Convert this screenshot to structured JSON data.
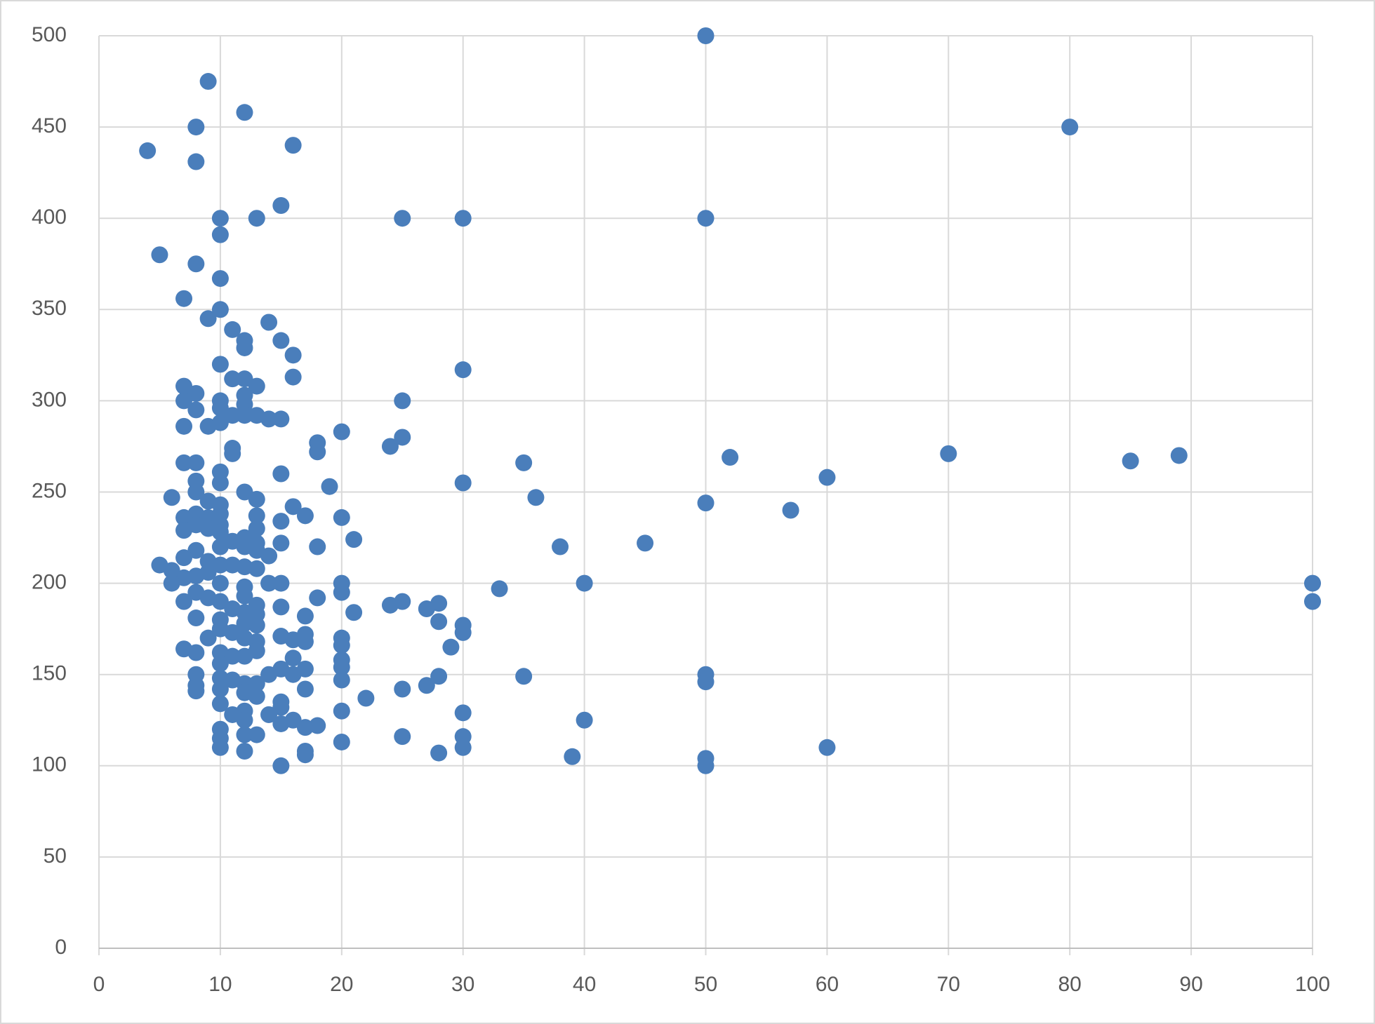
{
  "chart_data": {
    "type": "scatter",
    "color": "#4a7ebb",
    "grid": true,
    "xlim": [
      0,
      100
    ],
    "xticks": [
      0,
      10,
      20,
      30,
      40,
      50,
      60,
      70,
      80,
      90,
      100
    ],
    "ylim": [
      0,
      500
    ],
    "yticks": [
      0,
      50,
      100,
      150,
      200,
      250,
      300,
      350,
      400,
      450,
      500
    ],
    "x": [
      50,
      9,
      12,
      8,
      80,
      4,
      16,
      8,
      15,
      10,
      13,
      25,
      30,
      50,
      10,
      5,
      8,
      10,
      7,
      10,
      9,
      14,
      11,
      12,
      15,
      12,
      16,
      10,
      30,
      16,
      11,
      12,
      13,
      7,
      8,
      12,
      7,
      10,
      25,
      10,
      8,
      12,
      11,
      12,
      13,
      14,
      15,
      7,
      9,
      10,
      20,
      25,
      18,
      24,
      11,
      18,
      11,
      35,
      52,
      70,
      85,
      89,
      7,
      8,
      10,
      15,
      60,
      8,
      10,
      30,
      19,
      6,
      12,
      8,
      36,
      13,
      50,
      9,
      10,
      16,
      57,
      10,
      17,
      20,
      7,
      13,
      8,
      9,
      15,
      8,
      10,
      9,
      13,
      7,
      10,
      12,
      21,
      11,
      13,
      15,
      45,
      10,
      38,
      18,
      8,
      12,
      13,
      14,
      7,
      9,
      10,
      5,
      6,
      12,
      13,
      11,
      9,
      8,
      7,
      6,
      10,
      14,
      15,
      20,
      40,
      100,
      12,
      33,
      20,
      8,
      12,
      10,
      7,
      9,
      18,
      25,
      28,
      100,
      13,
      24,
      27,
      15,
      11,
      12,
      21,
      13,
      17,
      8,
      10,
      12,
      28,
      13,
      30,
      10,
      11,
      30,
      15,
      20,
      16,
      17,
      9,
      12,
      13,
      17,
      20,
      29,
      7,
      13,
      10,
      11,
      16,
      20,
      8,
      12,
      10,
      20,
      17,
      15,
      14,
      8,
      35,
      28,
      50,
      16,
      12,
      11,
      10,
      20,
      50,
      8,
      27,
      13,
      25,
      10,
      17,
      8,
      12,
      13,
      22,
      10,
      15,
      15,
      12,
      14,
      30,
      20,
      11,
      16,
      12,
      15,
      17,
      18,
      40,
      10,
      13,
      12,
      25,
      30,
      10,
      20,
      10,
      12,
      30,
      60,
      28,
      17,
      17,
      39,
      50,
      15,
      50
    ],
    "y": [
      500,
      475,
      458,
      450,
      450,
      437,
      440,
      431,
      407,
      400,
      400,
      400,
      400,
      400,
      391,
      380,
      375,
      367,
      356,
      350,
      345,
      343,
      339,
      333,
      333,
      329,
      325,
      320,
      317,
      313,
      312,
      312,
      308,
      308,
      304,
      303,
      300,
      300,
      300,
      296,
      295,
      298,
      292,
      292,
      292,
      290,
      290,
      286,
      286,
      288,
      283,
      280,
      277,
      275,
      274,
      272,
      271,
      266,
      269,
      271,
      267,
      270,
      266,
      266,
      261,
      260,
      258,
      256,
      255,
      255,
      253,
      247,
      250,
      250,
      247,
      246,
      244,
      245,
      243,
      242,
      240,
      238,
      237,
      236,
      236,
      237,
      238,
      236,
      234,
      232,
      232,
      230,
      230,
      229,
      228,
      225,
      224,
      223,
      222,
      222,
      222,
      220,
      220,
      220,
      218,
      220,
      218,
      215,
      214,
      212,
      210,
      210,
      207,
      209,
      208,
      210,
      206,
      204,
      203,
      200,
      200,
      200,
      200,
      200,
      200,
      200,
      198,
      197,
      195,
      195,
      193,
      190,
      190,
      192,
      192,
      190,
      189,
      190,
      188,
      188,
      186,
      187,
      186,
      184,
      184,
      183,
      182,
      181,
      180,
      178,
      179,
      177,
      177,
      175,
      173,
      173,
      171,
      170,
      169,
      172,
      170,
      170,
      168,
      168,
      166,
      165,
      164,
      163,
      162,
      160,
      159,
      158,
      162,
      160,
      156,
      154,
      153,
      153,
      150,
      150,
      149,
      149,
      150,
      150,
      145,
      147,
      148,
      147,
      146,
      144,
      144,
      145,
      142,
      142,
      142,
      141,
      140,
      138,
      137,
      134,
      135,
      132,
      130,
      128,
      129,
      130,
      128,
      125,
      125,
      123,
      121,
      122,
      125,
      120,
      117,
      117,
      116,
      116,
      115,
      113,
      110,
      108,
      110,
      110,
      107,
      106,
      108,
      105,
      104,
      100,
      100
    ]
  }
}
